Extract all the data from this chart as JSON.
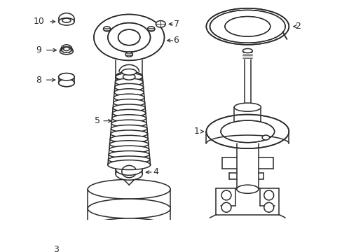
{
  "bg_color": "#ffffff",
  "line_color": "#2a2a2a",
  "line_width": 1.1,
  "label_fontsize": 9,
  "figsize": [
    4.89,
    3.6
  ],
  "dpi": 100
}
